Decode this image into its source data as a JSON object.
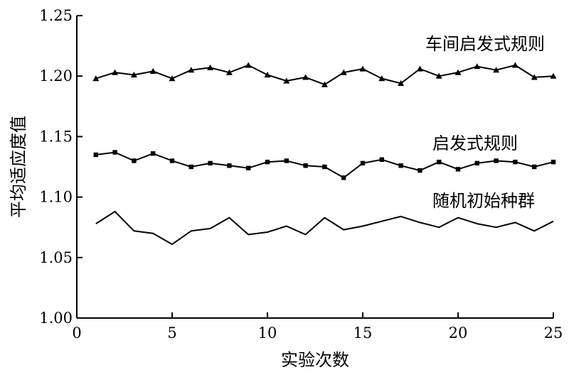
{
  "chart_data": {
    "type": "line",
    "title": "",
    "xlabel": "实验次数",
    "ylabel": "平均适应度值",
    "xlim": [
      0,
      25
    ],
    "ylim": [
      1.0,
      1.25
    ],
    "x_ticks": [
      "0",
      "5",
      "10",
      "15",
      "20",
      "25"
    ],
    "y_ticks": [
      "1.00",
      "1.05",
      "1.10",
      "1.15",
      "1.20",
      "1.25"
    ],
    "grid": false,
    "legend": "none; series labelled directly above each line",
    "x": [
      1,
      2,
      3,
      4,
      5,
      6,
      7,
      8,
      9,
      10,
      11,
      12,
      13,
      14,
      15,
      16,
      17,
      18,
      19,
      20,
      21,
      22,
      23,
      24,
      25
    ],
    "series": [
      {
        "name": "车间启发式规则",
        "marker": "triangle",
        "values": [
          1.198,
          1.203,
          1.201,
          1.204,
          1.198,
          1.205,
          1.207,
          1.203,
          1.209,
          1.201,
          1.196,
          1.199,
          1.193,
          1.203,
          1.206,
          1.198,
          1.194,
          1.206,
          1.2,
          1.203,
          1.208,
          1.205,
          1.209,
          1.199,
          1.2
        ]
      },
      {
        "name": "启发式规则",
        "marker": "square",
        "values": [
          1.135,
          1.137,
          1.13,
          1.136,
          1.13,
          1.125,
          1.128,
          1.126,
          1.124,
          1.129,
          1.13,
          1.126,
          1.125,
          1.116,
          1.128,
          1.131,
          1.126,
          1.122,
          1.129,
          1.123,
          1.128,
          1.13,
          1.129,
          1.125,
          1.129
        ]
      },
      {
        "name": "随机初始种群",
        "marker": "none",
        "values": [
          1.078,
          1.088,
          1.072,
          1.07,
          1.061,
          1.072,
          1.074,
          1.083,
          1.069,
          1.071,
          1.076,
          1.069,
          1.083,
          1.073,
          1.076,
          1.08,
          1.084,
          1.079,
          1.075,
          1.083,
          1.078,
          1.075,
          1.079,
          1.072,
          1.08
        ]
      }
    ]
  }
}
